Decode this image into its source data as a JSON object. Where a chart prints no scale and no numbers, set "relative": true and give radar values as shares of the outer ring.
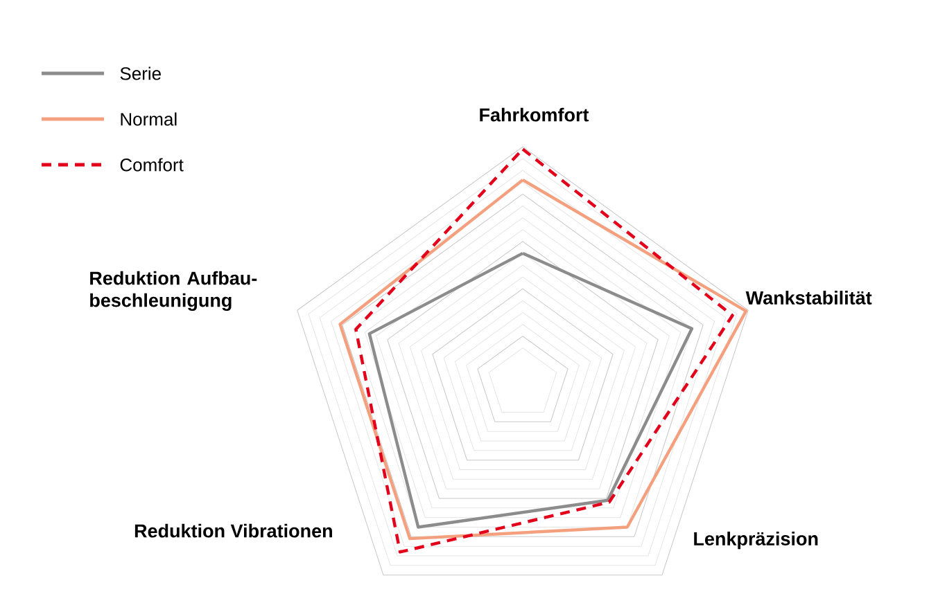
{
  "chart_data": {
    "type": "radar",
    "relative": true,
    "grid": true,
    "legend": "top left",
    "categories": [
      "Fahrkomfort",
      "Wankstabilität",
      "Lenkpräzision",
      "Reduktion Vibrationen",
      "Reduktion Aufbau-beschleunigung"
    ],
    "series": [
      {
        "name": "Serie",
        "color": "#8c8c8c",
        "line_style": "solid",
        "values": [
          0.55,
          0.75,
          0.61,
          0.75,
          0.68
        ]
      },
      {
        "name": "Normal",
        "color": "#f4a07e",
        "line_style": "solid",
        "values": [
          0.86,
          0.99,
          0.75,
          0.81,
          0.81
        ]
      },
      {
        "name": "Comfort",
        "color": "#e2001a",
        "line_style": "dashed",
        "values": [
          0.99,
          0.93,
          0.62,
          0.88,
          0.74
        ]
      }
    ]
  }
}
